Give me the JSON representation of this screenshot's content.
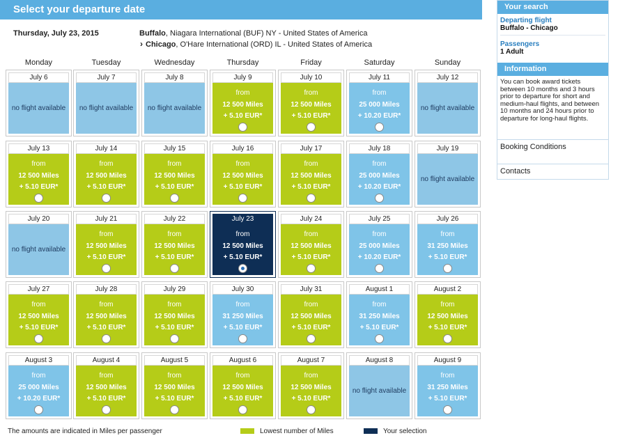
{
  "header": {
    "title": "Select your departure date"
  },
  "flight": {
    "date": "Thursday, July 23, 2015",
    "from_city": "Buffalo",
    "from_rest": ", Niagara International (BUF) NY - United States of America",
    "to_city": "Chicago",
    "to_rest": ", O'Hare International (ORD) IL - United States of America"
  },
  "weekdays": [
    "Monday",
    "Tuesday",
    "Wednesday",
    "Thursday",
    "Friday",
    "Saturday",
    "Sunday"
  ],
  "calendar": [
    [
      {
        "date": "July 6",
        "status": "none",
        "text": "no flight available"
      },
      {
        "date": "July 7",
        "status": "none",
        "text": "no flight available"
      },
      {
        "date": "July 8",
        "status": "none",
        "text": "no flight available"
      },
      {
        "date": "July 9",
        "status": "green",
        "from": "from",
        "miles": "12 500 Miles",
        "fee": "+ 5.10 EUR*"
      },
      {
        "date": "July 10",
        "status": "green",
        "from": "from",
        "miles": "12 500 Miles",
        "fee": "+ 5.10 EUR*"
      },
      {
        "date": "July 11",
        "status": "blue",
        "from": "from",
        "miles": "25 000 Miles",
        "fee": "+ 10.20 EUR*"
      },
      {
        "date": "July 12",
        "status": "none",
        "text": "no flight available"
      }
    ],
    [
      {
        "date": "July 13",
        "status": "green",
        "from": "from",
        "miles": "12 500 Miles",
        "fee": "+ 5.10 EUR*"
      },
      {
        "date": "July 14",
        "status": "green",
        "from": "from",
        "miles": "12 500 Miles",
        "fee": "+ 5.10 EUR*"
      },
      {
        "date": "July 15",
        "status": "green",
        "from": "from",
        "miles": "12 500 Miles",
        "fee": "+ 5.10 EUR*"
      },
      {
        "date": "July 16",
        "status": "green",
        "from": "from",
        "miles": "12 500 Miles",
        "fee": "+ 5.10 EUR*"
      },
      {
        "date": "July 17",
        "status": "green",
        "from": "from",
        "miles": "12 500 Miles",
        "fee": "+ 5.10 EUR*"
      },
      {
        "date": "July 18",
        "status": "blue",
        "from": "from",
        "miles": "25 000 Miles",
        "fee": "+ 10.20 EUR*"
      },
      {
        "date": "July 19",
        "status": "none",
        "text": "no flight available"
      }
    ],
    [
      {
        "date": "July 20",
        "status": "none",
        "text": "no flight available"
      },
      {
        "date": "July 21",
        "status": "green",
        "from": "from",
        "miles": "12 500 Miles",
        "fee": "+ 5.10 EUR*"
      },
      {
        "date": "July 22",
        "status": "green",
        "from": "from",
        "miles": "12 500 Miles",
        "fee": "+ 5.10 EUR*"
      },
      {
        "date": "July 23",
        "status": "selected",
        "from": "from",
        "miles": "12 500 Miles",
        "fee": "+ 5.10 EUR*"
      },
      {
        "date": "July 24",
        "status": "green",
        "from": "from",
        "miles": "12 500 Miles",
        "fee": "+ 5.10 EUR*"
      },
      {
        "date": "July 25",
        "status": "blue",
        "from": "from",
        "miles": "25 000 Miles",
        "fee": "+ 10.20 EUR*"
      },
      {
        "date": "July 26",
        "status": "blue",
        "from": "from",
        "miles": "31 250 Miles",
        "fee": "+ 5.10 EUR*"
      }
    ],
    [
      {
        "date": "July 27",
        "status": "green",
        "from": "from",
        "miles": "12 500 Miles",
        "fee": "+ 5.10 EUR*"
      },
      {
        "date": "July 28",
        "status": "green",
        "from": "from",
        "miles": "12 500 Miles",
        "fee": "+ 5.10 EUR*"
      },
      {
        "date": "July 29",
        "status": "green",
        "from": "from",
        "miles": "12 500 Miles",
        "fee": "+ 5.10 EUR*"
      },
      {
        "date": "July 30",
        "status": "blue",
        "from": "from",
        "miles": "31 250 Miles",
        "fee": "+ 5.10 EUR*"
      },
      {
        "date": "July 31",
        "status": "green",
        "from": "from",
        "miles": "12 500 Miles",
        "fee": "+ 5.10 EUR*"
      },
      {
        "date": "August 1",
        "status": "blue",
        "from": "from",
        "miles": "31 250 Miles",
        "fee": "+ 5.10 EUR*"
      },
      {
        "date": "August 2",
        "status": "green",
        "from": "from",
        "miles": "12 500 Miles",
        "fee": "+ 5.10 EUR*"
      }
    ],
    [
      {
        "date": "August 3",
        "status": "blue",
        "from": "from",
        "miles": "25 000 Miles",
        "fee": "+ 10.20 EUR*"
      },
      {
        "date": "August 4",
        "status": "green",
        "from": "from",
        "miles": "12 500 Miles",
        "fee": "+ 5.10 EUR*"
      },
      {
        "date": "August 5",
        "status": "green",
        "from": "from",
        "miles": "12 500 Miles",
        "fee": "+ 5.10 EUR*"
      },
      {
        "date": "August 6",
        "status": "green",
        "from": "from",
        "miles": "12 500 Miles",
        "fee": "+ 5.10 EUR*"
      },
      {
        "date": "August 7",
        "status": "green",
        "from": "from",
        "miles": "12 500 Miles",
        "fee": "+ 5.10 EUR*"
      },
      {
        "date": "August 8",
        "status": "none",
        "text": "no flight available"
      },
      {
        "date": "August 9",
        "status": "blue",
        "from": "from",
        "miles": "31 250 Miles",
        "fee": "+ 5.10 EUR*"
      }
    ]
  ],
  "legend": {
    "note": "The amounts are indicated in Miles per passenger",
    "lowest": "Lowest number of Miles",
    "selection": "Your selection",
    "colors": {
      "lowest": "#b5cc18",
      "selection": "#0e2e55",
      "other": "#7fc4e8"
    }
  },
  "sidebar": {
    "search_title": "Your search",
    "departing_label": "Departing flight",
    "departing_value": "Buffalo - Chicago",
    "passengers_label": "Passengers",
    "passengers_value": "1 Adult",
    "info_title": "Information",
    "info_text": "You can book award tickets between 10 months and 3 hours prior to departure for short and medium-haul flights, and between 10 months and 24 hours prior to departure for long-haul flights.",
    "booking_link": "Booking Conditions",
    "contacts_link": "Contacts"
  }
}
